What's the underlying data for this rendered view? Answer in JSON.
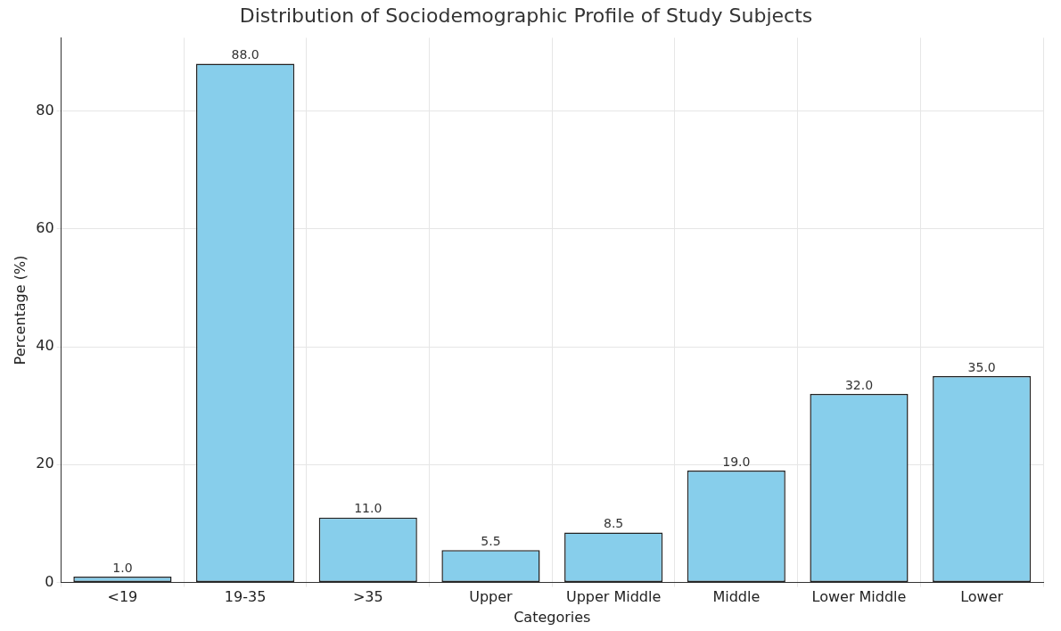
{
  "chart_data": {
    "type": "bar",
    "title": "Distribution of Sociodemographic Profile of Study Subjects",
    "xlabel": "Categories",
    "ylabel": "Percentage (%)",
    "categories": [
      "<19",
      "19-35",
      ">35",
      "Upper",
      "Upper Middle",
      "Middle",
      "Lower Middle",
      "Lower"
    ],
    "values": [
      1.0,
      88.0,
      11.0,
      5.5,
      8.5,
      19.0,
      32.0,
      35.0
    ],
    "value_labels": [
      "1.0",
      "88.0",
      "11.0",
      "5.5",
      "8.5",
      "19.0",
      "32.0",
      "35.0"
    ],
    "color": "#87ceeb",
    "ylim": [
      0,
      92.4
    ],
    "yticks": [
      0,
      20,
      40,
      60,
      80
    ],
    "grid": true,
    "legend": false
  }
}
